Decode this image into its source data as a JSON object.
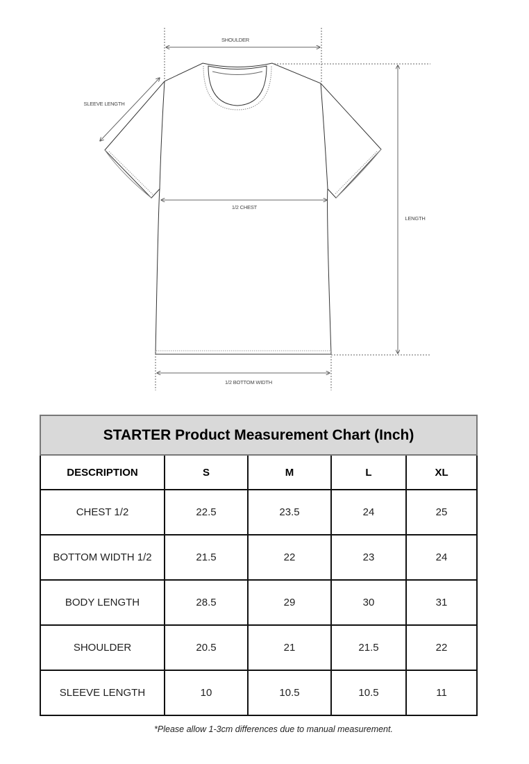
{
  "diagram": {
    "labels": {
      "shoulder": "SHOULDER",
      "sleeve_length": "SLEEVE LENGTH",
      "chest": "1/2 CHEST",
      "length": "LENGTH",
      "bottom_width": "1/2 BOTTOM WIDTH"
    }
  },
  "table": {
    "title": "STARTER Product Measurement Chart (Inch)",
    "headers": [
      "DESCRIPTION",
      "S",
      "M",
      "L",
      "XL"
    ],
    "rows": [
      [
        "CHEST 1/2",
        "22.5",
        "23.5",
        "24",
        "25"
      ],
      [
        "BOTTOM WIDTH 1/2",
        "21.5",
        "22",
        "23",
        "24"
      ],
      [
        "BODY LENGTH",
        "28.5",
        "29",
        "30",
        "31"
      ],
      [
        "SHOULDER",
        "20.5",
        "21",
        "21.5",
        "22"
      ],
      [
        "SLEEVE LENGTH",
        "10",
        "10.5",
        "10.5",
        "11"
      ]
    ],
    "header_bg": "#d9d9d9"
  },
  "note": "*Please allow 1-3cm differences due to manual measurement."
}
